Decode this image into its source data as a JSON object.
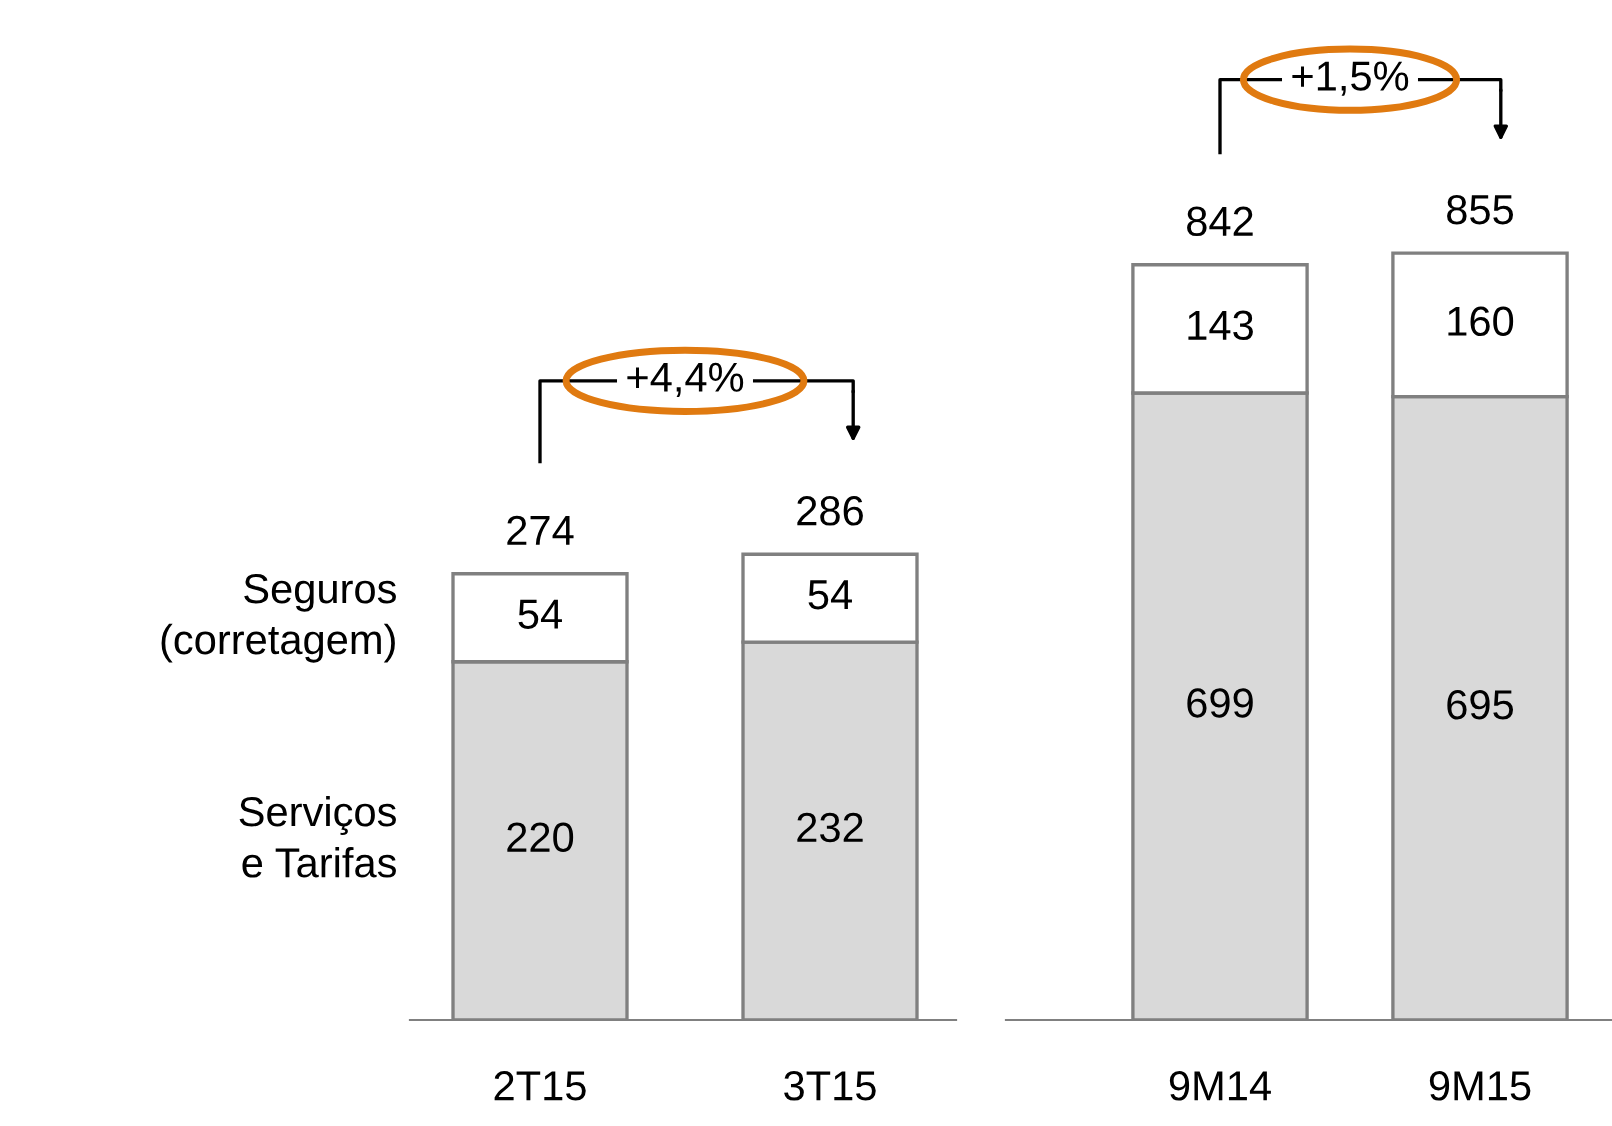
{
  "chart_data": [
    {
      "type": "bar",
      "stacked": true,
      "categories": [
        "2T15",
        "3T15"
      ],
      "tick_labels": "x",
      "data_labels": true,
      "legend": "left",
      "series": [
        {
          "name": "Serviços e Tarifas",
          "color": "#d9d9d9",
          "values": [
            220,
            232
          ]
        },
        {
          "name": "Seguros (corretagem)",
          "color": "#ffffff",
          "values": [
            54,
            54
          ]
        }
      ],
      "totals": [
        "274",
        "286"
      ],
      "annotations": [
        "+4,4%"
      ]
    },
    {
      "type": "bar",
      "stacked": true,
      "categories": [
        "9M14",
        "9M15"
      ],
      "tick_labels": "x",
      "data_labels": true,
      "series": [
        {
          "color": "#d9d9d9",
          "values": [
            699,
            695
          ]
        },
        {
          "color": "#ffffff",
          "values": [
            143,
            160
          ]
        }
      ],
      "totals": [
        "842",
        "855"
      ],
      "annotations": [
        "+1,5%"
      ]
    }
  ]
}
